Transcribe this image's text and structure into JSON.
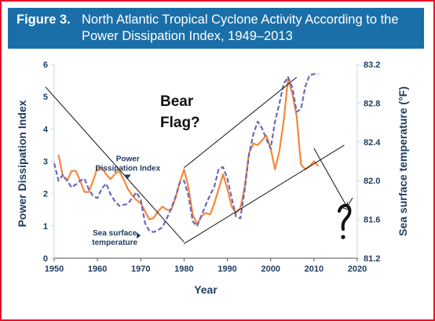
{
  "banner": {
    "label": "Figure 3.",
    "line1": "North Atlantic Tropical Cyclone Activity According to the",
    "line2": "Power Dissipation Index, 1949–2013"
  },
  "annotation": {
    "text": "Bear\nFlag?"
  },
  "colors": {
    "frame": "#e8102a",
    "banner": "#1b6fa8",
    "pdi": "#f7873b",
    "sst": "#6a6ab8",
    "axis_text": "#1f3a5f",
    "grid": "#c8d6e4",
    "drawn_lines": "#111111"
  },
  "chart_data": {
    "type": "line",
    "title": "North Atlantic Tropical Cyclone Activity According to the Power Dissipation Index, 1949–2013",
    "xlabel": "Year",
    "ylabel": "Power Dissipation Index",
    "y2label": "Sea surface temperature (°F)",
    "xlim": [
      1950,
      2020
    ],
    "ylim": [
      0,
      6
    ],
    "y2lim": [
      81.2,
      83.2
    ],
    "xticks": [
      "1950",
      "1960",
      "1970",
      "1980",
      "1990",
      "2000",
      "2010",
      "2020"
    ],
    "yticks": [
      "0",
      "1",
      "2",
      "3",
      "4",
      "5",
      "6"
    ],
    "y2ticks": [
      "81.2",
      "81.6",
      "82.0",
      "82.4",
      "82.8",
      "83.2"
    ],
    "grid": false,
    "series": [
      {
        "name": "Power\nDissipation Index",
        "axis": "left",
        "color": "#f7873b",
        "style": "solid",
        "x": [
          1951,
          1952,
          1953,
          1954,
          1955,
          1956,
          1957,
          1958,
          1959,
          1960,
          1961,
          1962,
          1963,
          1964,
          1965,
          1966,
          1967,
          1968,
          1969,
          1970,
          1971,
          1972,
          1973,
          1974,
          1975,
          1976,
          1977,
          1978,
          1979,
          1980,
          1981,
          1982,
          1983,
          1984,
          1985,
          1986,
          1987,
          1988,
          1989,
          1990,
          1991,
          1992,
          1993,
          1994,
          1995,
          1996,
          1997,
          1998,
          1999,
          2000,
          2001,
          2002,
          2003,
          2004,
          2005,
          2006,
          2007,
          2008,
          2009,
          2010,
          2011
        ],
        "values": [
          3.2,
          2.55,
          2.4,
          2.7,
          2.7,
          2.4,
          2.05,
          2.05,
          2.4,
          2.8,
          2.8,
          2.6,
          2.45,
          2.6,
          2.7,
          2.45,
          2.15,
          1.95,
          1.8,
          1.7,
          1.45,
          1.2,
          1.25,
          1.45,
          1.6,
          1.5,
          1.5,
          1.85,
          2.35,
          2.75,
          2.2,
          1.35,
          1.05,
          1.3,
          1.4,
          1.35,
          1.7,
          2.15,
          2.6,
          2.15,
          1.6,
          1.4,
          1.55,
          2.2,
          3.25,
          3.55,
          3.5,
          3.65,
          3.8,
          3.4,
          2.75,
          3.3,
          4.25,
          5.55,
          5.1,
          4.4,
          2.9,
          2.75,
          2.85,
          3.0,
          2.85
        ]
      },
      {
        "name": "Sea surface\ntemperature",
        "axis": "right",
        "color": "#6a6ab8",
        "style": "dashed",
        "x": [
          1950,
          1951,
          1952,
          1953,
          1954,
          1955,
          1956,
          1957,
          1958,
          1959,
          1960,
          1961,
          1962,
          1963,
          1964,
          1965,
          1966,
          1967,
          1968,
          1969,
          1970,
          1971,
          1972,
          1973,
          1974,
          1975,
          1976,
          1977,
          1978,
          1979,
          1980,
          1981,
          1982,
          1983,
          1984,
          1985,
          1986,
          1987,
          1988,
          1989,
          1990,
          1991,
          1992,
          1993,
          1994,
          1995,
          1996,
          1997,
          1998,
          1999,
          2000,
          2001,
          2002,
          2003,
          2004,
          2005,
          2006,
          2007,
          2008,
          2009,
          2010,
          2011
        ],
        "values": [
          82.18,
          82.0,
          82.06,
          82.0,
          81.93,
          81.96,
          82.0,
          82.02,
          81.91,
          81.84,
          81.82,
          81.92,
          81.97,
          81.86,
          81.79,
          81.74,
          81.75,
          81.76,
          81.82,
          81.88,
          81.8,
          81.56,
          81.48,
          81.47,
          81.49,
          81.52,
          81.61,
          81.71,
          81.83,
          81.98,
          82.0,
          81.85,
          81.58,
          81.53,
          81.64,
          81.75,
          81.85,
          81.94,
          82.12,
          82.14,
          82.02,
          81.82,
          81.63,
          81.61,
          81.9,
          82.27,
          82.48,
          82.61,
          82.54,
          82.43,
          82.33,
          82.61,
          82.79,
          83.0,
          83.07,
          82.96,
          82.71,
          82.74,
          82.97,
          83.09,
          83.1,
          83.1
        ]
      }
    ],
    "annotations": [
      {
        "text": "Power\nDissipation Index",
        "x": 1967,
        "y": 3.0
      },
      {
        "text": "Sea surface\ntemperature",
        "x": 1964,
        "y": 0.7
      }
    ],
    "drawn_lines": [
      {
        "x": [
          1948,
          1980
        ],
        "y": [
          5.3,
          0.5
        ]
      },
      {
        "x": [
          1980,
          2006
        ],
        "y": [
          2.8,
          5.6
        ]
      },
      {
        "x": [
          1980,
          2017
        ],
        "y": [
          0.45,
          3.5
        ]
      },
      {
        "x": [
          2010,
          2018
        ],
        "y": [
          3.4,
          1.5
        ]
      }
    ]
  }
}
